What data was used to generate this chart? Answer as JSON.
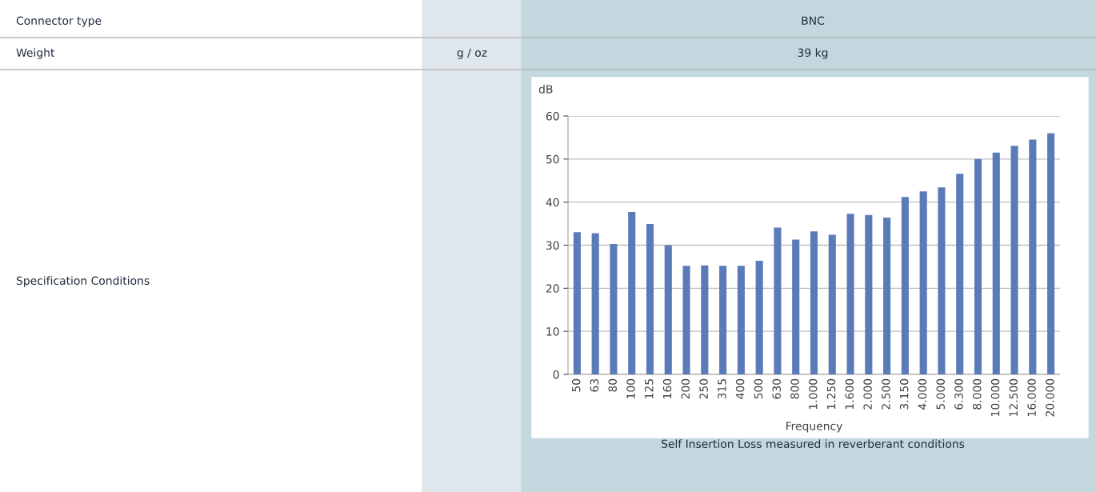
{
  "chart_data": {
    "type": "bar",
    "xlabel": "Frequency",
    "ylabel": "dB",
    "categories": [
      "50",
      "63",
      "80",
      "100",
      "125",
      "160",
      "200",
      "250",
      "315",
      "400",
      "500",
      "630",
      "800",
      "1.000",
      "1.250",
      "1.600",
      "2.000",
      "2.500",
      "3.150",
      "4.000",
      "5.000",
      "6.300",
      "8.000",
      "10.000",
      "12.500",
      "16.000",
      "20.000"
    ],
    "series": [
      {
        "color": "#5b7bb8",
        "values": [
          33,
          32.8,
          30.3,
          37.7,
          34.9,
          30,
          25.2,
          25.3,
          25.2,
          25.2,
          26.4,
          34.1,
          31.3,
          33.2,
          32.4,
          37.3,
          37,
          36.4,
          41.2,
          42.5,
          43.4,
          46.6,
          50,
          51.5,
          53.1,
          54.5,
          56
        ]
      }
    ],
    "ylim": [
      0,
      60
    ],
    "yticks": [
      0,
      10,
      20,
      30,
      40,
      50,
      60
    ],
    "grid": "y",
    "legend": false,
    "annotations": [
      "Connector type",
      "BNC",
      "Weight",
      "g / oz",
      "39 kg",
      "Specification Conditions",
      "Self Insertion Loss measured in reverberant conditions"
    ]
  }
}
